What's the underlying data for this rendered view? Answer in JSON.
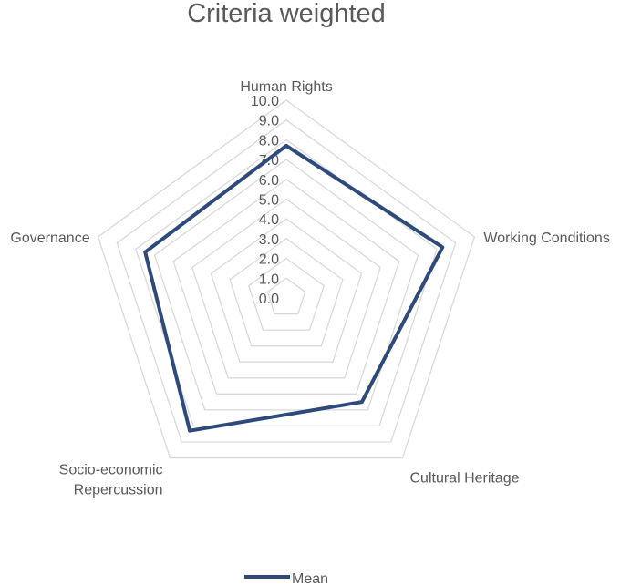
{
  "chart_data": {
    "type": "radar",
    "title": "Criteria weighted",
    "axes": [
      "Human Rights",
      "Working Conditions",
      "Cultural Heritage",
      "Socio-economic Repercussion",
      "Governance"
    ],
    "axis_lines": [
      [
        "Human Rights"
      ],
      [
        "Working Conditions"
      ],
      [
        "Cultural Heritage"
      ],
      [
        "Socio-economic",
        "Repercussion"
      ],
      [
        "Governance"
      ]
    ],
    "rlim": [
      0,
      10
    ],
    "ticks": [
      "0.0",
      "1.0",
      "2.0",
      "3.0",
      "4.0",
      "5.0",
      "6.0",
      "7.0",
      "8.0",
      "9.0",
      "10.0"
    ],
    "grid": true,
    "legend": "bottom",
    "series": [
      {
        "name": "Mean",
        "values": [
          7.7,
          8.3,
          6.5,
          8.3,
          7.5
        ],
        "color": "#2e4a7a"
      }
    ]
  }
}
